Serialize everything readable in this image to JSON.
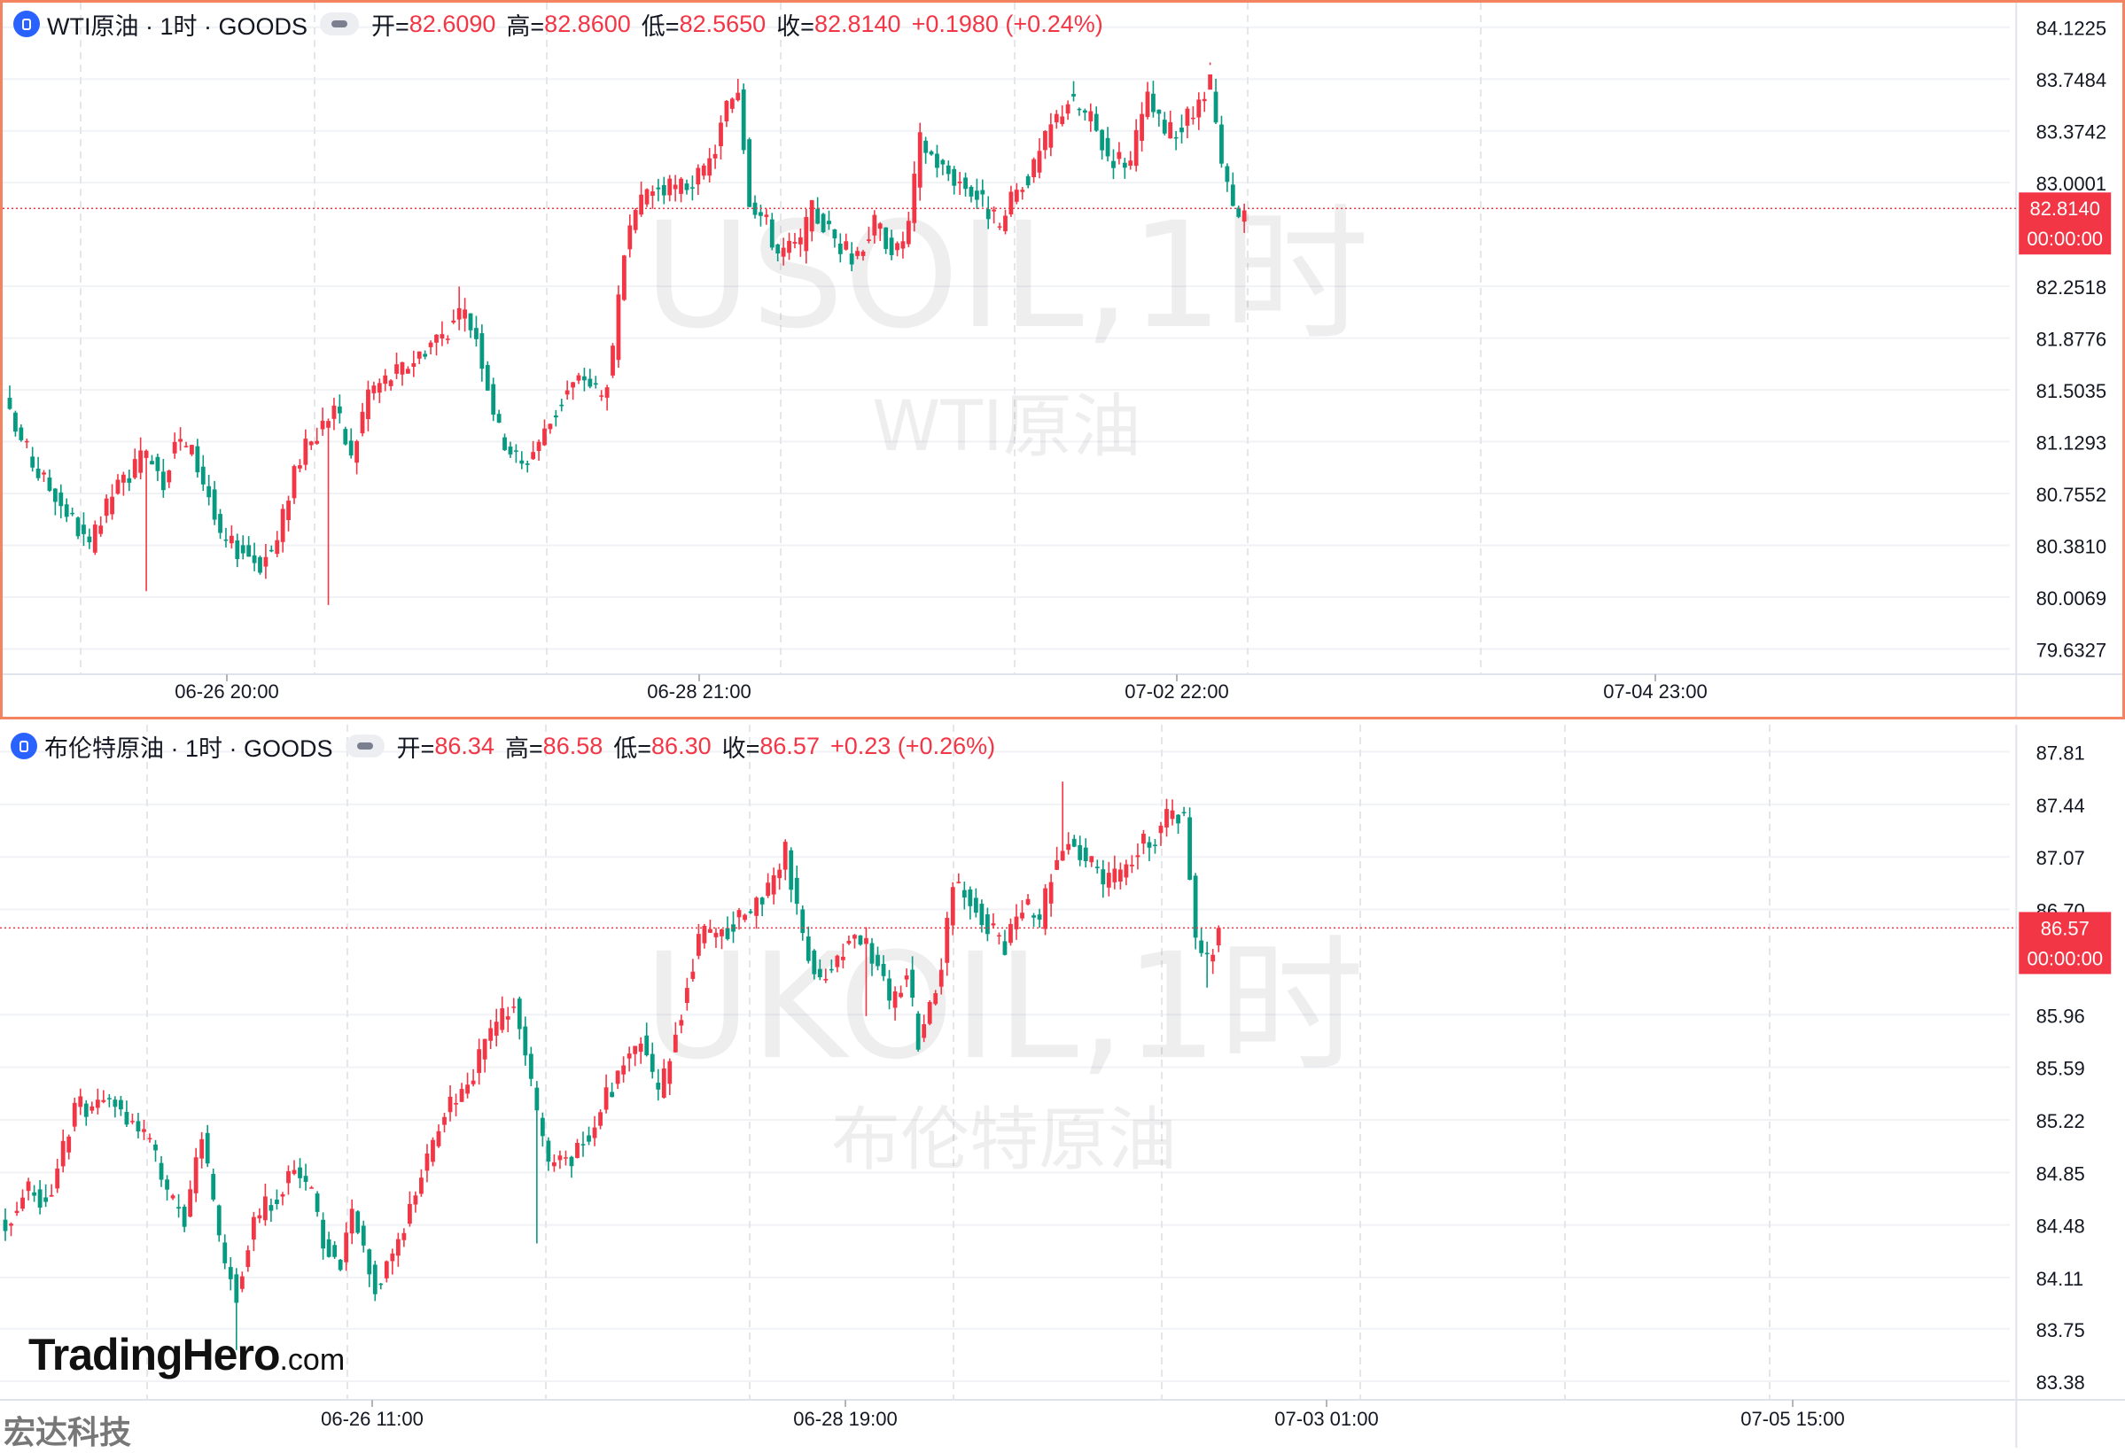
{
  "chart_data": [
    {
      "type": "candlestick",
      "header": {
        "symbol": "WTI原油 · 1时 · GOODS",
        "open_label": "开=",
        "open": "82.6090",
        "high_label": "高=",
        "high": "82.8600",
        "low_label": "低=",
        "low": "82.5650",
        "close_label": "收=",
        "close": "82.8140",
        "change": "+0.1980 (+0.24%)"
      },
      "watermark": {
        "ticker": "USOIL,1时",
        "name": "WTI原油"
      },
      "price_label": "82.8140",
      "countdown": "00:00:00",
      "last_price": 82.814,
      "y_ticks": [
        "84.1225",
        "83.7484",
        "83.3742",
        "83.0001",
        "82.2518",
        "81.8776",
        "81.5035",
        "81.1293",
        "80.7552",
        "80.3810",
        "80.0069",
        "79.6327"
      ],
      "ylim": [
        79.45,
        84.3
      ],
      "x_ticks": [
        "06-26 20:00",
        "06-28 21:00",
        "07-02 22:00",
        "07-04 23:00"
      ],
      "colors": {
        "up": "#f23645",
        "down": "#089981"
      },
      "close_path": [
        [
          0,
          81.3
        ],
        [
          5,
          80.9
        ],
        [
          8,
          80.75
        ],
        [
          12,
          80.5
        ],
        [
          14,
          80.35
        ],
        [
          18,
          80.75
        ],
        [
          22,
          80.95
        ],
        [
          25,
          81.05
        ],
        [
          27,
          80.85
        ],
        [
          29,
          81.15
        ],
        [
          32,
          81.05
        ],
        [
          35,
          80.75
        ],
        [
          37,
          80.4
        ],
        [
          41,
          80.35
        ],
        [
          44,
          80.25
        ],
        [
          47,
          80.4
        ],
        [
          50,
          80.95
        ],
        [
          55,
          81.25
        ],
        [
          57,
          81.4
        ],
        [
          60,
          81.0
        ],
        [
          63,
          81.5
        ],
        [
          65,
          81.55
        ],
        [
          69,
          81.65
        ],
        [
          74,
          81.85
        ],
        [
          80,
          82.05
        ],
        [
          82,
          81.9
        ],
        [
          86,
          81.2
        ],
        [
          90,
          80.95
        ],
        [
          94,
          81.2
        ],
        [
          98,
          81.5
        ],
        [
          101,
          81.6
        ],
        [
          104,
          81.45
        ],
        [
          106,
          81.75
        ],
        [
          108,
          82.5
        ],
        [
          112,
          82.95
        ],
        [
          117,
          82.95
        ],
        [
          122,
          83.05
        ],
        [
          124,
          83.25
        ],
        [
          126,
          83.55
        ],
        [
          128,
          83.7
        ],
        [
          130,
          82.9
        ],
        [
          133,
          82.7
        ],
        [
          135,
          82.5
        ],
        [
          139,
          82.55
        ],
        [
          141,
          82.8
        ],
        [
          144,
          82.65
        ],
        [
          148,
          82.45
        ],
        [
          152,
          82.7
        ],
        [
          156,
          82.5
        ],
        [
          158,
          82.7
        ],
        [
          160,
          83.3
        ],
        [
          164,
          83.1
        ],
        [
          169,
          82.95
        ],
        [
          172,
          82.8
        ],
        [
          174,
          82.65
        ],
        [
          177,
          82.95
        ],
        [
          180,
          83.1
        ],
        [
          183,
          83.4
        ],
        [
          186,
          83.6
        ],
        [
          190,
          83.45
        ],
        [
          193,
          83.2
        ],
        [
          197,
          83.15
        ],
        [
          200,
          83.6
        ],
        [
          203,
          83.35
        ],
        [
          206,
          83.4
        ],
        [
          209,
          83.55
        ],
        [
          211,
          83.7
        ],
        [
          213,
          83.1
        ],
        [
          215,
          82.8
        ],
        [
          216,
          82.72
        ],
        [
          217,
          82.8
        ]
      ],
      "wicks": [
        [
          24,
          80.05
        ],
        [
          56,
          79.95
        ],
        [
          79,
          82.25
        ],
        [
          128,
          83.75
        ],
        [
          211,
          83.85
        ]
      ]
    },
    {
      "type": "candlestick",
      "header": {
        "symbol": "布伦特原油 · 1时 · GOODS",
        "open_label": "开=",
        "open": "86.34",
        "high_label": "高=",
        "high": "86.58",
        "low_label": "低=",
        "low": "86.30",
        "close_label": "收=",
        "close": "86.57",
        "change": "+0.23 (+0.26%)"
      },
      "watermark": {
        "ticker": "UKOIL,1时",
        "name": "布伦特原油"
      },
      "price_label": "86.57",
      "countdown": "00:00:00",
      "last_price": 86.57,
      "y_ticks": [
        "87.81",
        "87.44",
        "87.07",
        "86.70",
        "85.96",
        "85.59",
        "85.22",
        "84.85",
        "84.48",
        "84.11",
        "83.75",
        "83.38"
      ],
      "ylim": [
        83.25,
        88.0
      ],
      "x_ticks": [
        "06-26 11:00",
        "06-28 19:00",
        "07-03 01:00",
        "07-05 15:00"
      ],
      "colors": {
        "up": "#f23645",
        "down": "#089981"
      },
      "close_path": [
        [
          0,
          84.5
        ],
        [
          4,
          84.75
        ],
        [
          7,
          84.65
        ],
        [
          10,
          85.0
        ],
        [
          12,
          85.35
        ],
        [
          15,
          85.3
        ],
        [
          18,
          85.35
        ],
        [
          21,
          85.25
        ],
        [
          25,
          85.05
        ],
        [
          28,
          84.7
        ],
        [
          31,
          84.55
        ],
        [
          34,
          85.1
        ],
        [
          36,
          84.6
        ],
        [
          38,
          84.2
        ],
        [
          40,
          84.0
        ],
        [
          43,
          84.5
        ],
        [
          47,
          84.7
        ],
        [
          50,
          84.85
        ],
        [
          53,
          84.7
        ],
        [
          55,
          84.35
        ],
        [
          58,
          84.2
        ],
        [
          60,
          84.6
        ],
        [
          62,
          84.3
        ],
        [
          64,
          84.05
        ],
        [
          67,
          84.3
        ],
        [
          70,
          84.6
        ],
        [
          73,
          84.95
        ],
        [
          76,
          85.3
        ],
        [
          80,
          85.45
        ],
        [
          84,
          85.85
        ],
        [
          88,
          86.05
        ],
        [
          90,
          85.65
        ],
        [
          94,
          84.9
        ],
        [
          98,
          84.95
        ],
        [
          102,
          85.2
        ],
        [
          106,
          85.55
        ],
        [
          110,
          85.8
        ],
        [
          113,
          85.35
        ],
        [
          117,
          86.0
        ],
        [
          120,
          86.5
        ],
        [
          124,
          86.55
        ],
        [
          128,
          86.65
        ],
        [
          132,
          86.85
        ],
        [
          135,
          87.1
        ],
        [
          138,
          86.5
        ],
        [
          141,
          86.2
        ],
        [
          145,
          86.45
        ],
        [
          148,
          86.5
        ],
        [
          151,
          86.3
        ],
        [
          153,
          86.05
        ],
        [
          156,
          86.25
        ],
        [
          158,
          85.75
        ],
        [
          160,
          86.05
        ],
        [
          162,
          86.3
        ],
        [
          164,
          86.9
        ],
        [
          167,
          86.75
        ],
        [
          170,
          86.6
        ],
        [
          173,
          86.45
        ],
        [
          176,
          86.75
        ],
        [
          179,
          86.6
        ],
        [
          181,
          86.95
        ],
        [
          184,
          87.2
        ],
        [
          187,
          87.05
        ],
        [
          190,
          86.9
        ],
        [
          193,
          86.95
        ],
        [
          196,
          87.15
        ],
        [
          199,
          87.2
        ],
        [
          201,
          87.35
        ],
        [
          204,
          87.35
        ],
        [
          206,
          86.5
        ],
        [
          208,
          86.34
        ],
        [
          209,
          86.45
        ],
        [
          210,
          86.57
        ]
      ],
      "wicks": [
        [
          40,
          83.6
        ],
        [
          92,
          84.35
        ],
        [
          149,
          85.95
        ],
        [
          158,
          85.7
        ],
        [
          183,
          87.6
        ],
        [
          208,
          86.15
        ]
      ]
    }
  ],
  "branding": {
    "logo_main": "TradingHero",
    "logo_suffix": ".com",
    "corner_mark": "宏达科技"
  }
}
